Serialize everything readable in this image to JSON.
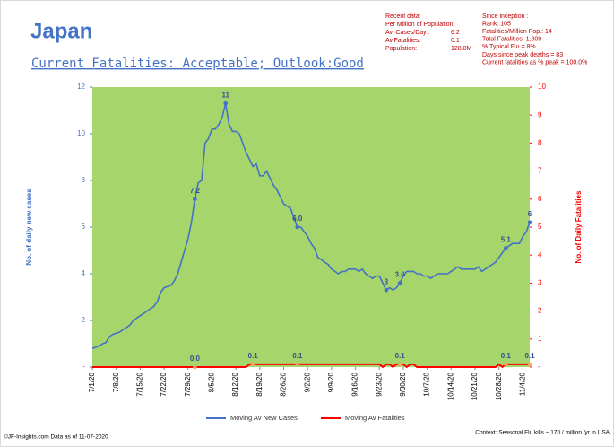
{
  "chart_data": {
    "type": "line",
    "title": "Japan",
    "subtitle": "Current Fatalities: Acceptable; Outlook:Good",
    "ylabel": "No. of daily new  cases",
    "y2label": "No. of Daily Fatalities",
    "x": [
      "7/1/20",
      "7/2/20",
      "7/3/20",
      "7/4/20",
      "7/5/20",
      "7/6/20",
      "7/7/20",
      "7/8/20",
      "7/9/20",
      "7/10/20",
      "7/11/20",
      "7/12/20",
      "7/13/20",
      "7/14/20",
      "7/15/20",
      "7/16/20",
      "7/17/20",
      "7/18/20",
      "7/19/20",
      "7/20/20",
      "7/21/20",
      "7/22/20",
      "7/23/20",
      "7/24/20",
      "7/25/20",
      "7/26/20",
      "7/27/20",
      "7/28/20",
      "7/29/20",
      "7/30/20",
      "7/31/20",
      "8/1/20",
      "8/2/20",
      "8/3/20",
      "8/4/20",
      "8/5/20",
      "8/6/20",
      "8/7/20",
      "8/8/20",
      "8/9/20",
      "8/10/20",
      "8/11/20",
      "8/12/20",
      "8/13/20",
      "8/14/20",
      "8/15/20",
      "8/16/20",
      "8/17/20",
      "8/18/20",
      "8/19/20",
      "8/20/20",
      "8/21/20",
      "8/22/20",
      "8/23/20",
      "8/24/20",
      "8/25/20",
      "8/26/20",
      "8/27/20",
      "8/28/20",
      "8/29/20",
      "8/30/20",
      "8/31/20",
      "9/1/20",
      "9/2/20",
      "9/3/20",
      "9/4/20",
      "9/5/20",
      "9/6/20",
      "9/7/20",
      "9/8/20",
      "9/9/20",
      "9/10/20",
      "9/11/20",
      "9/12/20",
      "9/13/20",
      "9/14/20",
      "9/15/20",
      "9/16/20",
      "9/17/20",
      "9/18/20",
      "9/19/20",
      "9/20/20",
      "9/21/20",
      "9/22/20",
      "9/23/20",
      "9/24/20",
      "9/25/20",
      "9/26/20",
      "9/27/20",
      "9/28/20",
      "9/29/20",
      "9/30/20",
      "10/1/20",
      "10/2/20",
      "10/3/20",
      "10/4/20",
      "10/5/20",
      "10/6/20",
      "10/7/20",
      "10/8/20",
      "10/9/20",
      "10/10/20",
      "10/11/20",
      "10/12/20",
      "10/13/20",
      "10/14/20",
      "10/15/20",
      "10/16/20",
      "10/17/20",
      "10/18/20",
      "10/19/20",
      "10/20/20",
      "10/21/20",
      "10/22/20",
      "10/23/20",
      "10/24/20",
      "10/25/20",
      "10/26/20",
      "10/27/20",
      "10/28/20",
      "10/29/20",
      "10/30/20",
      "10/31/20",
      "11/1/20",
      "11/2/20",
      "11/3/20",
      "11/4/20",
      "11/5/20",
      "11/6/20"
    ],
    "series": [
      {
        "name": "Moving Av New Cases",
        "color": "#4472c4",
        "values": [
          0.8,
          0.85,
          0.9,
          1.0,
          1.05,
          1.3,
          1.4,
          1.45,
          1.5,
          1.6,
          1.7,
          1.8,
          2.0,
          2.1,
          2.2,
          2.3,
          2.4,
          2.5,
          2.6,
          2.8,
          3.2,
          3.4,
          3.45,
          3.5,
          3.7,
          4.0,
          4.5,
          5.0,
          5.5,
          6.2,
          7.2,
          7.9,
          8.0,
          9.6,
          9.8,
          10.2,
          10.2,
          10.4,
          10.7,
          11.3,
          10.4,
          10.1,
          10.1,
          10.0,
          9.6,
          9.2,
          8.9,
          8.6,
          8.7,
          8.2,
          8.2,
          8.4,
          8.1,
          7.8,
          7.6,
          7.3,
          7.0,
          6.9,
          6.8,
          6.4,
          6.0,
          6.0,
          5.8,
          5.6,
          5.3,
          5.1,
          4.7,
          4.6,
          4.5,
          4.4,
          4.2,
          4.1,
          4.0,
          4.1,
          4.1,
          4.2,
          4.2,
          4.2,
          4.1,
          4.2,
          4.0,
          3.9,
          3.8,
          3.9,
          3.9,
          3.6,
          3.3,
          3.4,
          3.3,
          3.4,
          3.6,
          3.9,
          4.1,
          4.1,
          4.1,
          4.0,
          4.0,
          3.9,
          3.9,
          3.8,
          3.9,
          4.0,
          4.0,
          4.0,
          4.0,
          4.1,
          4.2,
          4.3,
          4.2,
          4.2,
          4.2,
          4.2,
          4.2,
          4.3,
          4.1,
          4.2,
          4.3,
          4.4,
          4.5,
          4.7,
          4.9,
          5.1,
          5.2,
          5.3,
          5.3,
          5.3,
          5.6,
          5.8,
          6.2
        ],
        "value_labels": [
          null,
          null,
          null,
          null,
          null,
          null,
          null,
          null,
          null,
          null,
          null,
          null,
          null,
          null,
          null,
          null,
          null,
          null,
          null,
          null,
          null,
          null,
          null,
          null,
          null,
          null,
          null,
          null,
          null,
          null,
          "7.2",
          null,
          null,
          null,
          null,
          null,
          null,
          null,
          null,
          "11",
          null,
          null,
          null,
          null,
          null,
          null,
          null,
          null,
          null,
          null,
          null,
          null,
          null,
          null,
          null,
          null,
          null,
          null,
          null,
          null,
          "6.0",
          null,
          null,
          null,
          null,
          null,
          null,
          null,
          null,
          null,
          null,
          null,
          null,
          null,
          null,
          null,
          null,
          null,
          null,
          null,
          null,
          null,
          null,
          null,
          null,
          null,
          "3",
          null,
          null,
          null,
          "3.6",
          null,
          null,
          null,
          null,
          null,
          null,
          null,
          null,
          null,
          null,
          null,
          null,
          null,
          null,
          null,
          null,
          null,
          null,
          null,
          null,
          null,
          null,
          null,
          null,
          null,
          null,
          null,
          null,
          null,
          null,
          "5.1",
          null,
          null,
          null,
          null,
          null,
          null,
          "6"
        ]
      },
      {
        "name": "Moving Av Fatalities",
        "color": "#ff0000",
        "axis": "y2",
        "values": [
          0,
          0,
          0,
          0,
          0,
          0,
          0,
          0,
          0,
          0,
          0,
          0,
          0,
          0,
          0,
          0,
          0,
          0,
          0,
          0,
          0,
          0,
          0,
          0,
          0,
          0,
          0,
          0,
          0,
          0,
          0,
          0,
          0,
          0,
          0,
          0,
          0,
          0,
          0,
          0,
          0,
          0,
          0,
          0,
          0,
          0,
          0.1,
          0.1,
          0.1,
          0.1,
          0.1,
          0.1,
          0.1,
          0.1,
          0.1,
          0.1,
          0.1,
          0.1,
          0.1,
          0.1,
          0.1,
          0.1,
          0.1,
          0.1,
          0.1,
          0.1,
          0.1,
          0.1,
          0.1,
          0.1,
          0.1,
          0.1,
          0.1,
          0.1,
          0.1,
          0.1,
          0.1,
          0.1,
          0.1,
          0.1,
          0.1,
          0.1,
          0.1,
          0.1,
          0.1,
          0,
          0.1,
          0.1,
          0,
          0.1,
          0.1,
          0.1,
          0,
          0.1,
          0.1,
          0,
          0,
          0,
          0,
          0,
          0,
          0,
          0,
          0,
          0,
          0,
          0,
          0,
          0,
          0,
          0,
          0,
          0,
          0,
          0,
          0,
          0,
          0,
          0,
          0.1,
          0,
          0.1,
          0.1,
          0.1,
          0.1,
          0.1,
          0.1,
          0.1,
          0.1
        ],
        "value_labels": [
          null,
          null,
          null,
          null,
          null,
          null,
          null,
          null,
          null,
          null,
          null,
          null,
          null,
          null,
          null,
          null,
          null,
          null,
          null,
          null,
          null,
          null,
          null,
          null,
          null,
          null,
          null,
          null,
          null,
          null,
          "0.0",
          null,
          null,
          null,
          null,
          null,
          null,
          null,
          null,
          null,
          null,
          null,
          null,
          null,
          null,
          null,
          null,
          "0.1",
          null,
          null,
          null,
          null,
          null,
          null,
          null,
          null,
          null,
          null,
          null,
          null,
          "0.1",
          null,
          null,
          null,
          null,
          null,
          null,
          null,
          null,
          null,
          null,
          null,
          null,
          null,
          null,
          null,
          null,
          null,
          null,
          null,
          null,
          null,
          null,
          null,
          null,
          null,
          null,
          null,
          null,
          null,
          "0.1",
          null,
          null,
          null,
          null,
          null,
          null,
          null,
          null,
          null,
          null,
          null,
          null,
          null,
          null,
          null,
          null,
          null,
          null,
          null,
          null,
          null,
          null,
          null,
          null,
          null,
          null,
          null,
          null,
          null,
          null,
          "0.1",
          null,
          null,
          null,
          null,
          null,
          null,
          "0.1"
        ]
      }
    ],
    "ylim": [
      0,
      12
    ],
    "yticks": [
      {
        "value": 0,
        "label": "-"
      },
      2,
      4,
      6,
      8,
      10,
      12
    ],
    "y2lim": [
      0,
      10
    ],
    "y2ticks": [
      {
        "value": 0,
        "label": "-"
      },
      1,
      2,
      3,
      4,
      5,
      6,
      7,
      8,
      9,
      10
    ],
    "plot_background": "#a6d56c",
    "legend": "bottom"
  },
  "info_left": [
    [
      "Recent data:"
    ],
    [
      "Per Million of Population:"
    ],
    [
      "Av. Cases/Day :",
      "6.2"
    ],
    [
      "Av.Fatalities:",
      "0.1"
    ],
    [
      "Population:",
      "128.0M"
    ]
  ],
  "info_right": [
    "Since inception :",
    "Rank: 105",
    "Fatalities/Million Pop.: 14",
    "Total Fatalities: 1,809",
    "% Typical Flu = 8%",
    "Days since peak deaths = 83",
    "Current fatalities as % peak = 100.0%"
  ],
  "footer_left": "©JF-Insights.com  Data as of 11-07-2020",
  "footer_right": "Context: Seasonal Flu kills ~ 170 / million /yr in USA"
}
